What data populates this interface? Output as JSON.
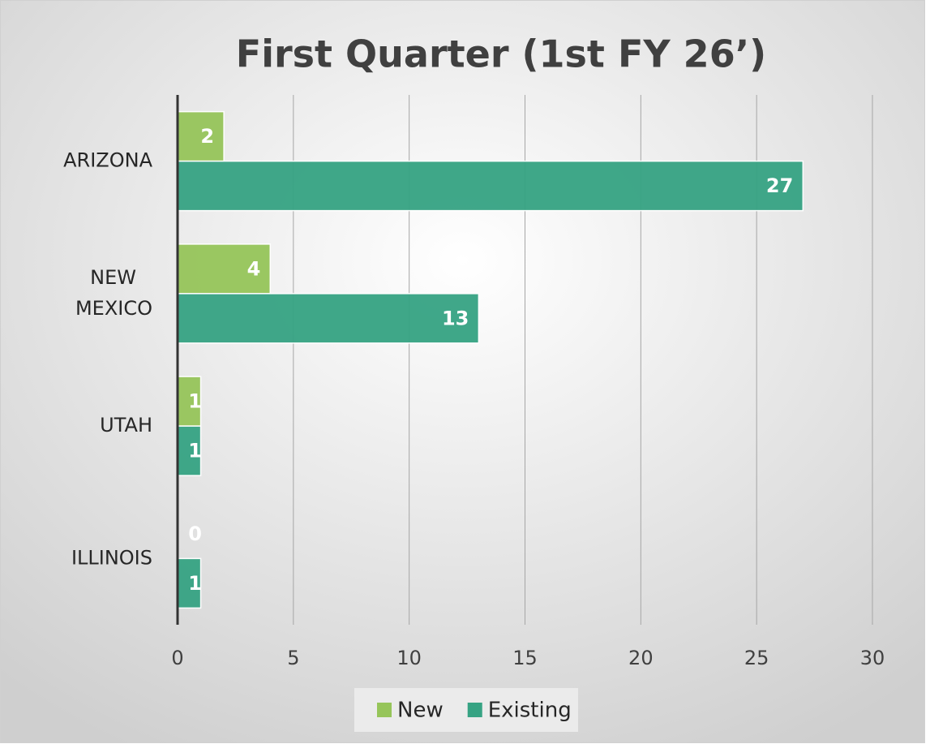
{
  "chart_data": {
    "type": "barh",
    "title": "First Quarter (1st FY 26’)",
    "categories": [
      "ARIZONA",
      "NEW MEXICO",
      "UTAH",
      "ILLINOIS"
    ],
    "series": [
      {
        "name": "New",
        "color": "#96c55a",
        "values": [
          2,
          4,
          1,
          0
        ]
      },
      {
        "name": "Existing",
        "color": "#36a383",
        "values": [
          27,
          13,
          1,
          1
        ]
      }
    ],
    "xlim": [
      0,
      30
    ],
    "xticks": [
      0,
      5,
      10,
      15,
      20,
      25,
      30
    ],
    "grid": true,
    "legend": "bottom"
  }
}
